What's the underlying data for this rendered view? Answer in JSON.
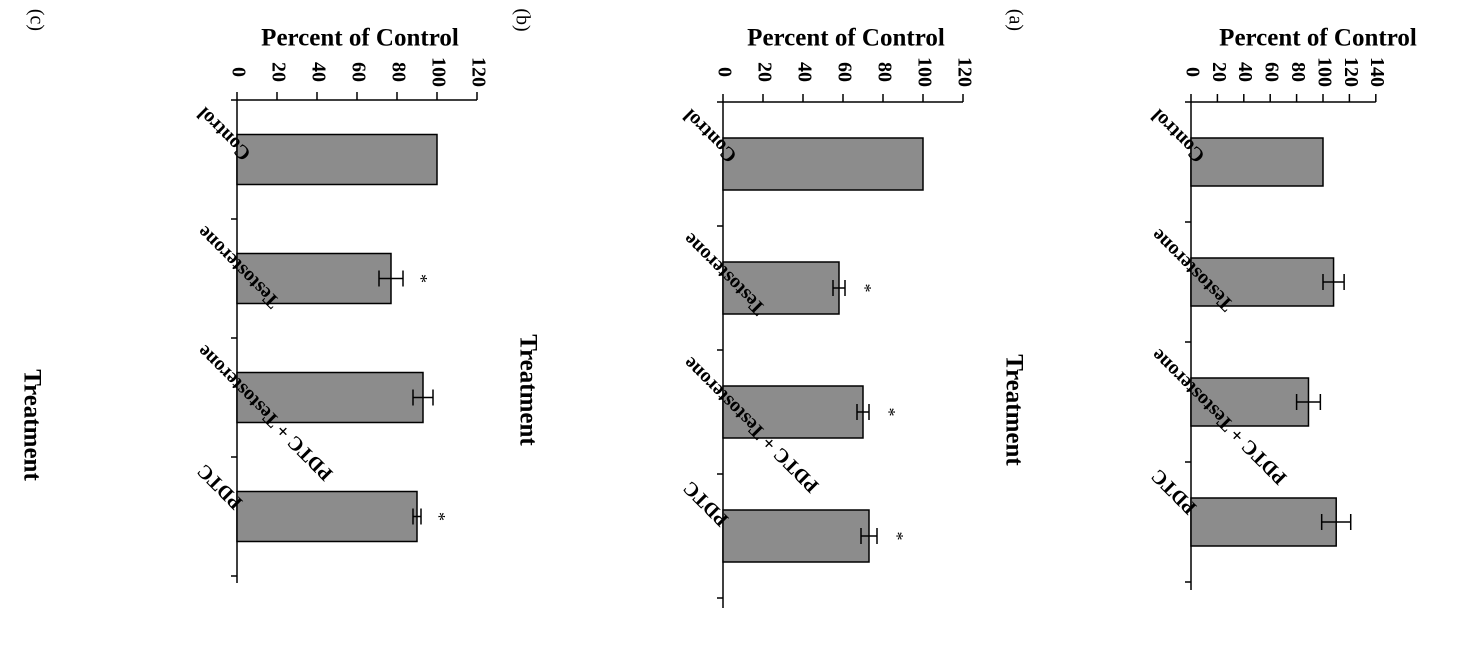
{
  "chart_data": [
    {
      "type": "bar",
      "panel_label": "(a)",
      "ylabel": "Percent of Control",
      "xlabel": "Treatment",
      "categories": [
        "Control",
        "Testosterone",
        "PDTC + Testosterone",
        "PDTC"
      ],
      "values": [
        100,
        108,
        89,
        110
      ],
      "errors": [
        0,
        8,
        9,
        11
      ],
      "significant": [
        false,
        false,
        false,
        false
      ],
      "ylim": [
        0,
        140
      ],
      "ticks": [
        0,
        20,
        40,
        60,
        80,
        100,
        120,
        140
      ],
      "tick_labels": [
        "0",
        "20",
        "40",
        "60",
        "80",
        "100",
        "120",
        "140"
      ],
      "bar_color": "#8c8c8c"
    },
    {
      "type": "bar",
      "panel_label": "(b)",
      "ylabel": "Percent of Control",
      "xlabel": "Treatment",
      "categories": [
        "Control",
        "Testosterone",
        "PDTC + Testosterone",
        "PDTC"
      ],
      "values": [
        100,
        58,
        70,
        73
      ],
      "errors": [
        0,
        3,
        3,
        4
      ],
      "significant": [
        false,
        true,
        true,
        true
      ],
      "significance_mark": "*",
      "ylim": [
        0,
        120
      ],
      "ticks": [
        0,
        20,
        40,
        60,
        80,
        100,
        120
      ],
      "tick_labels": [
        "0",
        "20",
        "40",
        "60",
        "80",
        "100",
        "120"
      ],
      "bar_color": "#8c8c8c"
    },
    {
      "type": "bar",
      "panel_label": "(c)",
      "ylabel": "Percent of Control",
      "xlabel": "Treatment",
      "categories": [
        "Control",
        "Testosterone",
        "PDTC + Testosterone",
        "PDTC"
      ],
      "values": [
        100,
        77,
        93,
        90
      ],
      "errors": [
        0,
        6,
        5,
        2
      ],
      "significant": [
        false,
        true,
        false,
        true
      ],
      "significance_mark": "*",
      "ylim": [
        0,
        120
      ],
      "ticks": [
        0,
        20,
        40,
        60,
        80,
        100,
        120
      ],
      "tick_labels": [
        "0",
        "20",
        "40",
        "60",
        "80",
        "100",
        "120"
      ],
      "bar_color": "#8c8c8c"
    }
  ]
}
